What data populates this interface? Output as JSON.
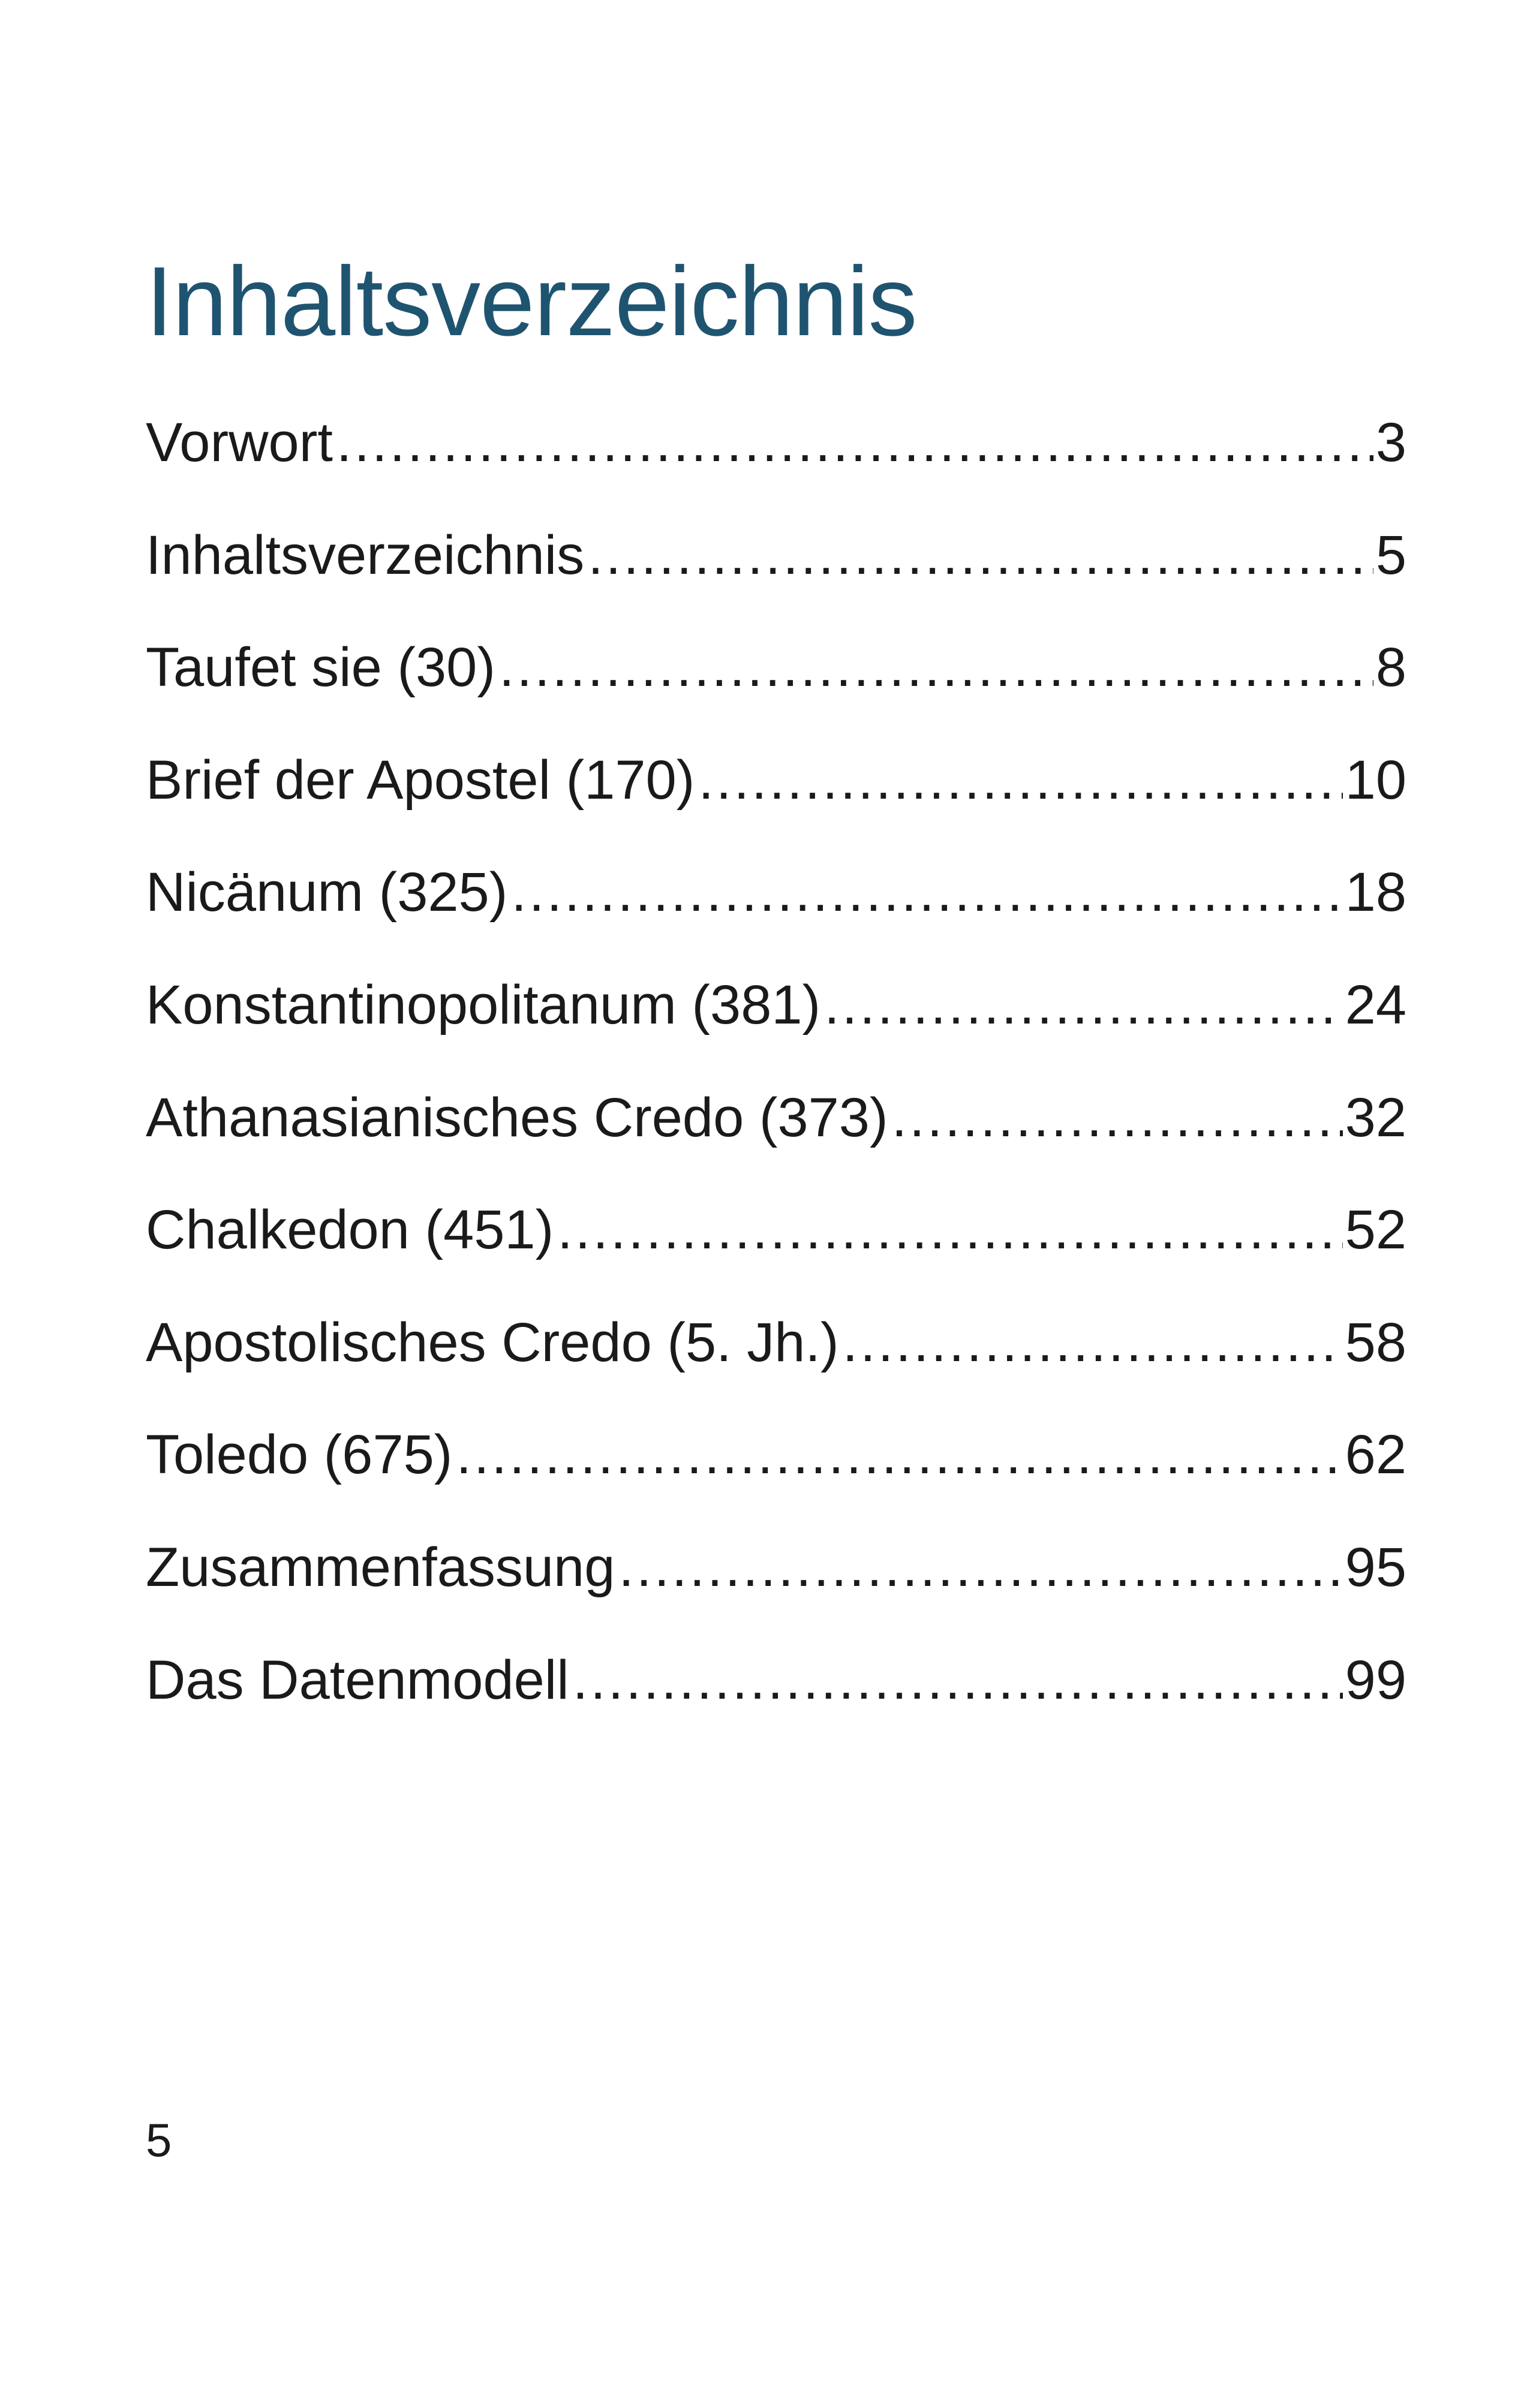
{
  "title": "Inhaltsverzeichnis",
  "entries": [
    {
      "label": "Vorwort",
      "page": "3"
    },
    {
      "label": "Inhaltsverzeichnis",
      "page": "5"
    },
    {
      "label": "Taufet sie (30)",
      "page": "8"
    },
    {
      "label": "Brief der Apostel (170)",
      "page": "10"
    },
    {
      "label": "Nicänum (325)",
      "page": "18"
    },
    {
      "label": "Konstantinopolitanum (381)",
      "page": "24"
    },
    {
      "label": "Athanasianisches Credo (373)",
      "page": "32"
    },
    {
      "label": "Chalkedon (451)",
      "page": "52"
    },
    {
      "label": "Apostolisches Credo (5. Jh.)",
      "page": "58"
    },
    {
      "label": "Toledo (675)",
      "page": "62"
    },
    {
      "label": "Zusammenfassung",
      "page": "95"
    },
    {
      "label": "Das Datenmodell",
      "page": "99"
    }
  ],
  "footer": {
    "page_number": "5"
  },
  "colors": {
    "title": "#1f5470",
    "text": "#1a1a1a"
  }
}
